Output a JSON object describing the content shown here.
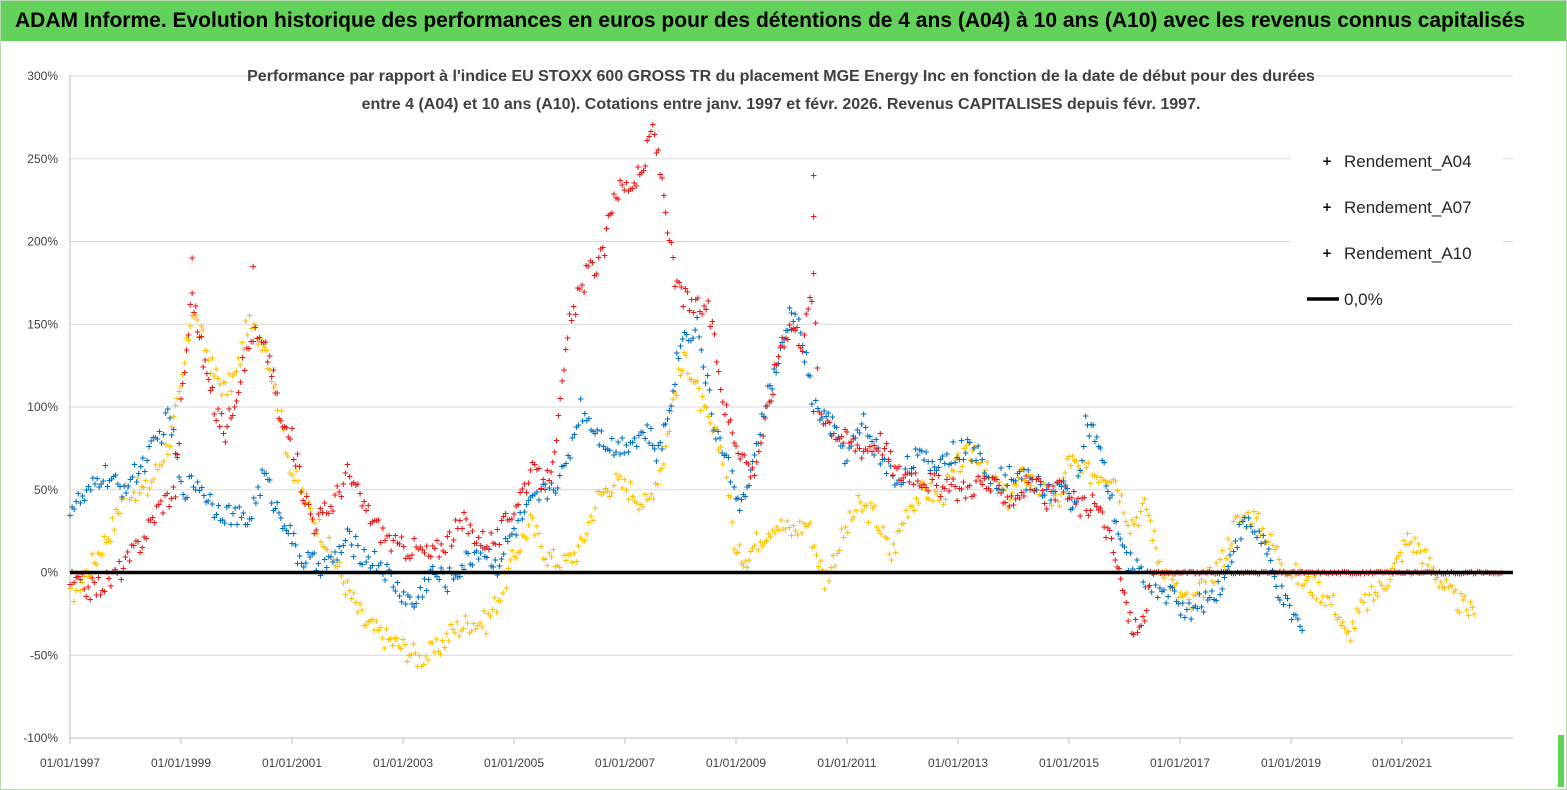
{
  "banner": {
    "title": "ADAM Informe. Evolution historique des performances en euros pour des détentions de 4 ans (A04) à 10 ans (A10) avec les revenus connus capitalisés"
  },
  "chart_data": {
    "type": "scatter",
    "title_lines": [
      "Performance par rapport à l'indice EU STOXX 600 GROSS TR  du placement MGE Energy Inc en fonction de la date de début pour des durées",
      "entre 4 (A04) et 10 ans (A10). Cotations entre janv. 1997 et févr. 2026. Revenus CAPITALISES depuis févr. 1997."
    ],
    "x_start_year": 1997,
    "x_end_year": 2023,
    "x_tick_labels": [
      "01/01/1997",
      "01/01/1999",
      "01/01/2001",
      "01/01/2003",
      "01/01/2005",
      "01/01/2007",
      "01/01/2009",
      "01/01/2011",
      "01/01/2013",
      "01/01/2015",
      "01/01/2017",
      "01/01/2019",
      "01/01/2021"
    ],
    "x_tick_years": [
      1997,
      1999,
      2001,
      2003,
      2005,
      2007,
      2009,
      2011,
      2013,
      2015,
      2017,
      2019,
      2021
    ],
    "ylim": [
      -100,
      300
    ],
    "y_tick_values": [
      300,
      250,
      200,
      150,
      100,
      50,
      0,
      -50,
      -100
    ],
    "y_tick_labels": [
      "300%",
      "250%",
      "200%",
      "150%",
      "100%",
      "50%",
      "0%",
      "-50%",
      "-100%"
    ],
    "zero_line": {
      "name": "0,0%",
      "value": 0,
      "color": "#000000"
    },
    "legend": {
      "position": "top-right"
    },
    "series": [
      {
        "name": "Rendement_A04",
        "color": "#ffc000",
        "marker": "+",
        "points": [
          [
            1997.0,
            -15
          ],
          [
            1997.4,
            5
          ],
          [
            1997.8,
            30
          ],
          [
            1998.0,
            50
          ],
          [
            1998.4,
            50
          ],
          [
            1998.8,
            80
          ],
          [
            1999.0,
            110
          ],
          [
            1999.2,
            160
          ],
          [
            1999.4,
            140
          ],
          [
            1999.6,
            120
          ],
          [
            1999.8,
            110
          ],
          [
            2000.0,
            120
          ],
          [
            2000.2,
            150
          ],
          [
            2000.5,
            140
          ],
          [
            2000.7,
            110
          ],
          [
            2001.0,
            60
          ],
          [
            2001.3,
            40
          ],
          [
            2001.6,
            20
          ],
          [
            2002.0,
            -10
          ],
          [
            2002.3,
            -30
          ],
          [
            2002.7,
            -40
          ],
          [
            2003.0,
            -45
          ],
          [
            2003.3,
            -52
          ],
          [
            2003.6,
            -47
          ],
          [
            2003.9,
            -35
          ],
          [
            2004.2,
            -30
          ],
          [
            2004.5,
            -30
          ],
          [
            2004.8,
            -10
          ],
          [
            2005.0,
            10
          ],
          [
            2005.3,
            30
          ],
          [
            2005.6,
            10
          ],
          [
            2005.9,
            5
          ],
          [
            2006.2,
            15
          ],
          [
            2006.5,
            45
          ],
          [
            2006.8,
            55
          ],
          [
            2007.1,
            50
          ],
          [
            2007.4,
            40
          ],
          [
            2007.7,
            70
          ],
          [
            2007.9,
            110
          ],
          [
            2008.1,
            130
          ],
          [
            2008.3,
            110
          ],
          [
            2008.5,
            90
          ],
          [
            2008.8,
            70
          ],
          [
            2009.0,
            10
          ],
          [
            2009.2,
            10
          ],
          [
            2009.4,
            20
          ],
          [
            2009.7,
            30
          ],
          [
            2010.0,
            25
          ],
          [
            2010.3,
            30
          ],
          [
            2010.6,
            -5
          ],
          [
            2010.9,
            20
          ],
          [
            2011.2,
            40
          ],
          [
            2011.5,
            35
          ],
          [
            2011.8,
            10
          ],
          [
            2012.1,
            40
          ],
          [
            2012.4,
            50
          ],
          [
            2012.7,
            45
          ],
          [
            2013.0,
            65
          ],
          [
            2013.3,
            75
          ],
          [
            2013.6,
            55
          ],
          [
            2013.9,
            45
          ],
          [
            2014.2,
            60
          ],
          [
            2014.5,
            50
          ],
          [
            2014.8,
            40
          ],
          [
            2015.0,
            70
          ],
          [
            2015.2,
            60
          ],
          [
            2015.5,
            60
          ],
          [
            2015.8,
            60
          ],
          [
            2016.1,
            30
          ],
          [
            2016.4,
            40
          ],
          [
            2016.6,
            10
          ],
          [
            2016.9,
            -10
          ],
          [
            2017.2,
            -20
          ],
          [
            2017.5,
            -5
          ],
          [
            2017.8,
            10
          ],
          [
            2018.0,
            30
          ],
          [
            2018.3,
            35
          ],
          [
            2018.6,
            20
          ],
          [
            2018.9,
            5
          ],
          [
            2019.2,
            -5
          ],
          [
            2019.5,
            -10
          ],
          [
            2019.8,
            -20
          ],
          [
            2020.0,
            -40
          ],
          [
            2020.3,
            -20
          ],
          [
            2020.6,
            -10
          ],
          [
            2020.9,
            5
          ],
          [
            2021.1,
            20
          ],
          [
            2021.3,
            15
          ],
          [
            2021.5,
            5
          ],
          [
            2021.7,
            -5
          ],
          [
            2021.9,
            -15
          ],
          [
            2022.1,
            -20
          ],
          [
            2022.3,
            -25
          ]
        ]
      },
      {
        "name": "Rendement_A07",
        "color": "#0070c0",
        "marker": "+",
        "points": [
          [
            1997.0,
            40
          ],
          [
            1997.3,
            45
          ],
          [
            1997.6,
            60
          ],
          [
            1997.9,
            50
          ],
          [
            1998.2,
            60
          ],
          [
            1998.5,
            75
          ],
          [
            1998.8,
            95
          ],
          [
            1999.0,
            50
          ],
          [
            1999.3,
            55
          ],
          [
            1999.6,
            40
          ],
          [
            1999.9,
            35
          ],
          [
            2000.2,
            30
          ],
          [
            2000.5,
            60
          ],
          [
            2000.7,
            40
          ],
          [
            2000.9,
            30
          ],
          [
            2001.1,
            10
          ],
          [
            2001.4,
            5
          ],
          [
            2001.7,
            5
          ],
          [
            2002.0,
            20
          ],
          [
            2002.3,
            10
          ],
          [
            2002.6,
            5
          ],
          [
            2002.9,
            -10
          ],
          [
            2003.2,
            -20
          ],
          [
            2003.5,
            0
          ],
          [
            2003.8,
            -5
          ],
          [
            2004.1,
            5
          ],
          [
            2004.4,
            15
          ],
          [
            2004.7,
            5
          ],
          [
            2005.0,
            25
          ],
          [
            2005.3,
            40
          ],
          [
            2005.6,
            50
          ],
          [
            2005.9,
            60
          ],
          [
            2006.2,
            100
          ],
          [
            2006.5,
            85
          ],
          [
            2006.8,
            75
          ],
          [
            2007.1,
            80
          ],
          [
            2007.4,
            85
          ],
          [
            2007.6,
            70
          ],
          [
            2007.8,
            100
          ],
          [
            2008.0,
            140
          ],
          [
            2008.3,
            150
          ],
          [
            2008.6,
            90
          ],
          [
            2008.9,
            60
          ],
          [
            2009.1,
            40
          ],
          [
            2009.3,
            60
          ],
          [
            2009.5,
            100
          ],
          [
            2009.8,
            130
          ],
          [
            2010.0,
            160
          ],
          [
            2010.2,
            140
          ],
          [
            2010.4,
            100
          ],
          [
            2010.7,
            90
          ],
          [
            2011.0,
            70
          ],
          [
            2011.3,
            90
          ],
          [
            2011.6,
            70
          ],
          [
            2011.9,
            55
          ],
          [
            2012.2,
            70
          ],
          [
            2012.5,
            65
          ],
          [
            2012.8,
            70
          ],
          [
            2013.1,
            75
          ],
          [
            2013.4,
            70
          ],
          [
            2013.7,
            55
          ],
          [
            2014.0,
            60
          ],
          [
            2014.3,
            55
          ],
          [
            2014.6,
            50
          ],
          [
            2014.9,
            50
          ],
          [
            2015.1,
            40
          ],
          [
            2015.3,
            90
          ],
          [
            2015.5,
            80
          ],
          [
            2015.7,
            50
          ],
          [
            2016.0,
            10
          ],
          [
            2016.3,
            0
          ],
          [
            2016.6,
            -10
          ],
          [
            2016.9,
            -15
          ],
          [
            2017.2,
            -25
          ],
          [
            2017.5,
            -15
          ],
          [
            2017.8,
            -5
          ],
          [
            2018.0,
            20
          ],
          [
            2018.2,
            30
          ],
          [
            2018.5,
            20
          ],
          [
            2018.7,
            -5
          ],
          [
            2018.9,
            -20
          ],
          [
            2019.2,
            -35
          ]
        ]
      },
      {
        "name": "Rendement_A10",
        "color": "#e81818",
        "marker": "+",
        "points": [
          [
            1997.0,
            -5
          ],
          [
            1997.4,
            -10
          ],
          [
            1997.7,
            -5
          ],
          [
            1998.0,
            5
          ],
          [
            1998.3,
            20
          ],
          [
            1998.6,
            40
          ],
          [
            1998.9,
            50
          ],
          [
            1999.0,
            100
          ],
          [
            1999.2,
            170
          ],
          [
            1999.4,
            130
          ],
          [
            1999.6,
            100
          ],
          [
            1999.8,
            85
          ],
          [
            2000.0,
            110
          ],
          [
            2000.3,
            145
          ],
          [
            2000.6,
            130
          ],
          [
            2000.8,
            90
          ],
          [
            2001.0,
            80
          ],
          [
            2001.2,
            50
          ],
          [
            2001.4,
            30
          ],
          [
            2001.7,
            40
          ],
          [
            2002.0,
            60
          ],
          [
            2002.3,
            40
          ],
          [
            2002.6,
            25
          ],
          [
            2002.9,
            15
          ],
          [
            2003.2,
            15
          ],
          [
            2003.5,
            10
          ],
          [
            2003.8,
            20
          ],
          [
            2004.1,
            30
          ],
          [
            2004.4,
            20
          ],
          [
            2004.7,
            20
          ],
          [
            2005.0,
            40
          ],
          [
            2005.3,
            60
          ],
          [
            2005.6,
            55
          ],
          [
            2005.8,
            90
          ],
          [
            2006.0,
            150
          ],
          [
            2006.3,
            180
          ],
          [
            2006.6,
            190
          ],
          [
            2006.8,
            230
          ],
          [
            2007.1,
            235
          ],
          [
            2007.3,
            240
          ],
          [
            2007.5,
            270
          ],
          [
            2007.7,
            230
          ],
          [
            2007.9,
            175
          ],
          [
            2008.2,
            160
          ],
          [
            2008.5,
            160
          ],
          [
            2008.8,
            100
          ],
          [
            2009.0,
            80
          ],
          [
            2009.3,
            60
          ],
          [
            2009.6,
            100
          ],
          [
            2009.8,
            140
          ],
          [
            2010.0,
            150
          ],
          [
            2010.2,
            140
          ],
          [
            2010.4,
            175
          ],
          [
            2010.5,
            100
          ],
          [
            2010.8,
            85
          ],
          [
            2011.0,
            80
          ],
          [
            2011.3,
            75
          ],
          [
            2011.6,
            80
          ],
          [
            2011.9,
            60
          ],
          [
            2012.2,
            60
          ],
          [
            2012.5,
            55
          ],
          [
            2012.8,
            50
          ],
          [
            2013.1,
            50
          ],
          [
            2013.4,
            55
          ],
          [
            2013.7,
            50
          ],
          [
            2014.0,
            45
          ],
          [
            2014.3,
            55
          ],
          [
            2014.6,
            45
          ],
          [
            2014.9,
            50
          ],
          [
            2015.2,
            40
          ],
          [
            2015.5,
            40
          ],
          [
            2015.7,
            25
          ],
          [
            2015.9,
            0
          ],
          [
            2016.1,
            -30
          ],
          [
            2016.3,
            -35
          ],
          [
            2016.5,
            0
          ],
          [
            2016.8,
            0
          ],
          [
            2017.2,
            0
          ],
          [
            2017.6,
            0
          ],
          [
            2018.0,
            0
          ],
          [
            2018.4,
            0
          ],
          [
            2018.8,
            0
          ],
          [
            2019.2,
            0
          ],
          [
            2019.6,
            0
          ],
          [
            2020.0,
            0
          ],
          [
            2020.4,
            0
          ],
          [
            2020.8,
            0
          ],
          [
            2021.2,
            0
          ],
          [
            2021.6,
            0
          ],
          [
            2022.0,
            0
          ],
          [
            2022.4,
            0
          ],
          [
            2022.8,
            0
          ]
        ]
      },
      {
        "name": "Rendement_A10_pics",
        "legend": false,
        "color": "#e81818",
        "marker": "+",
        "points": [
          [
            1999.2,
            190
          ],
          [
            2000.3,
            185
          ],
          [
            2010.4,
            240
          ],
          [
            2010.4,
            215
          ]
        ]
      }
    ]
  }
}
